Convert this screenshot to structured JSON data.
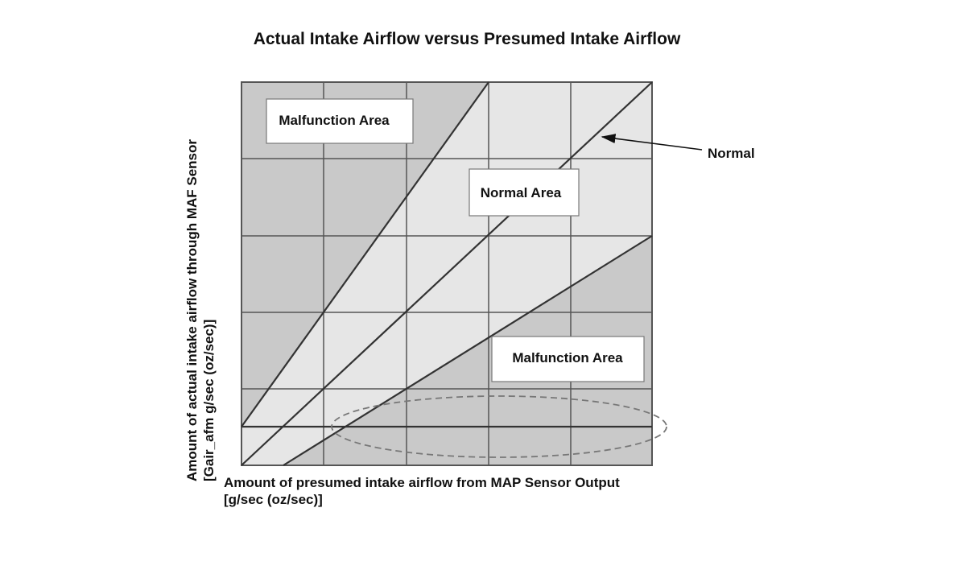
{
  "title": "Actual Intake Airflow versus Presumed Intake Airflow",
  "x_axis_label": [
    "Amount of presumed intake airflow from MAP Sensor Output",
    "[g/sec (oz/sec)]"
  ],
  "y_axis_label": [
    "Amount of actual intake airflow through MAF Sensor",
    "[Gair_afm g/sec (oz/sec)]"
  ],
  "areas": [
    "Malfunction Area",
    "Normal Area",
    "Malfunction Area"
  ],
  "annotation": "Normal"
}
